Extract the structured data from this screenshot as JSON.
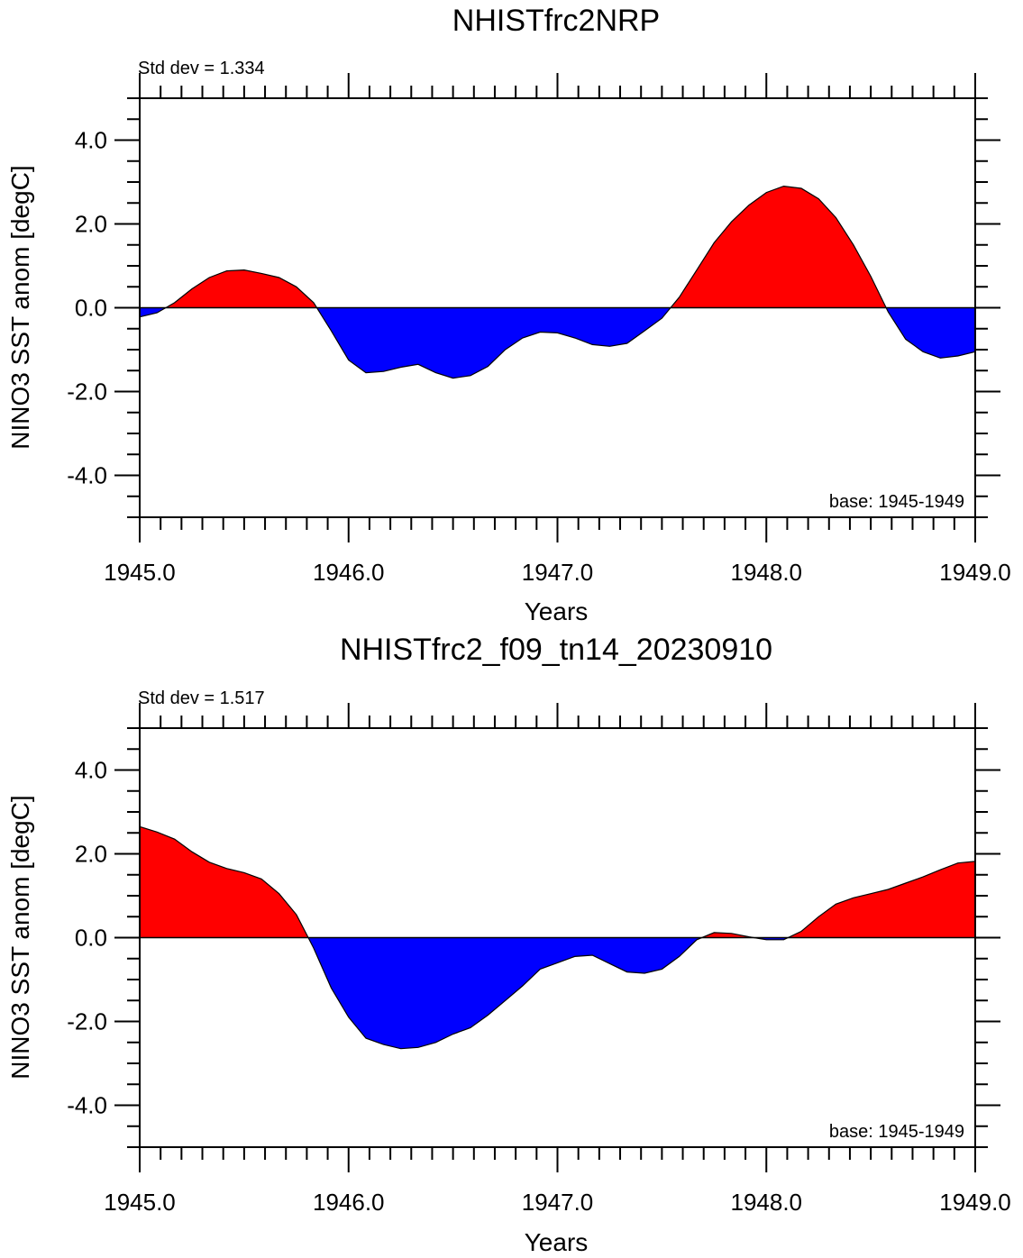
{
  "figure": {
    "colors": {
      "positive": "#ff0000",
      "negative": "#0000ff",
      "axis": "#000000"
    }
  },
  "chart_data": [
    {
      "type": "area",
      "title": "NHISTfrc2NRP",
      "xlabel": "Years",
      "ylabel": "NINO3 SST anom [degC]",
      "stddev_label": "Std dev = 1.334",
      "base_label": "base: 1945-1949",
      "xlim": [
        1945.0,
        1949.0
      ],
      "ylim": [
        -5.0,
        5.0
      ],
      "xticks": [
        1945.0,
        1946.0,
        1947.0,
        1948.0,
        1949.0
      ],
      "xtick_labels": [
        "1945.0",
        "1946.0",
        "1947.0",
        "1948.0",
        "1949.0"
      ],
      "yticks": [
        -4.0,
        -2.0,
        0.0,
        2.0,
        4.0
      ],
      "ytick_labels": [
        "-4.0",
        "-2.0",
        "0.0",
        "2.0",
        "4.0"
      ],
      "fill_above": "red",
      "fill_below": "blue",
      "x": [
        1945.0,
        1945.083,
        1945.167,
        1945.25,
        1945.333,
        1945.417,
        1945.5,
        1945.583,
        1945.667,
        1945.75,
        1945.833,
        1945.917,
        1946.0,
        1946.083,
        1946.167,
        1946.25,
        1946.333,
        1946.417,
        1946.5,
        1946.583,
        1946.667,
        1946.75,
        1946.833,
        1946.917,
        1947.0,
        1947.083,
        1947.167,
        1947.25,
        1947.333,
        1947.417,
        1947.5,
        1947.583,
        1947.667,
        1947.75,
        1947.833,
        1947.917,
        1948.0,
        1948.083,
        1948.167,
        1948.25,
        1948.333,
        1948.417,
        1948.5,
        1948.583,
        1948.667,
        1948.75,
        1948.833,
        1948.917,
        1949.0
      ],
      "y": [
        -0.22,
        -0.12,
        0.12,
        0.45,
        0.72,
        0.88,
        0.9,
        0.82,
        0.72,
        0.5,
        0.12,
        -0.55,
        -1.25,
        -1.55,
        -1.52,
        -1.42,
        -1.35,
        -1.55,
        -1.68,
        -1.62,
        -1.4,
        -1.0,
        -0.72,
        -0.58,
        -0.6,
        -0.72,
        -0.88,
        -0.92,
        -0.85,
        -0.55,
        -0.25,
        0.25,
        0.9,
        1.55,
        2.05,
        2.45,
        2.75,
        2.9,
        2.85,
        2.6,
        2.15,
        1.5,
        0.75,
        -0.1,
        -0.75,
        -1.05,
        -1.2,
        -1.15,
        -1.05
      ]
    },
    {
      "type": "area",
      "title": "NHISTfrc2_f09_tn14_20230910",
      "xlabel": "Years",
      "ylabel": "NINO3 SST anom [degC]",
      "stddev_label": "Std dev = 1.517",
      "base_label": "base: 1945-1949",
      "xlim": [
        1945.0,
        1949.0
      ],
      "ylim": [
        -5.0,
        5.0
      ],
      "xticks": [
        1945.0,
        1946.0,
        1947.0,
        1948.0,
        1949.0
      ],
      "xtick_labels": [
        "1945.0",
        "1946.0",
        "1947.0",
        "1948.0",
        "1949.0"
      ],
      "yticks": [
        -4.0,
        -2.0,
        0.0,
        2.0,
        4.0
      ],
      "ytick_labels": [
        "-4.0",
        "-2.0",
        "0.0",
        "2.0",
        "4.0"
      ],
      "fill_above": "red",
      "fill_below": "blue",
      "x": [
        1945.0,
        1945.083,
        1945.167,
        1945.25,
        1945.333,
        1945.417,
        1945.5,
        1945.583,
        1945.667,
        1945.75,
        1945.833,
        1945.917,
        1946.0,
        1946.083,
        1946.167,
        1946.25,
        1946.333,
        1946.417,
        1946.5,
        1946.583,
        1946.667,
        1946.75,
        1946.833,
        1946.917,
        1947.0,
        1947.083,
        1947.167,
        1947.25,
        1947.333,
        1947.417,
        1947.5,
        1947.583,
        1947.667,
        1947.75,
        1947.833,
        1947.917,
        1948.0,
        1948.083,
        1948.167,
        1948.25,
        1948.333,
        1948.417,
        1948.5,
        1948.583,
        1948.667,
        1948.75,
        1948.833,
        1948.917,
        1949.0
      ],
      "y": [
        2.65,
        2.52,
        2.35,
        2.05,
        1.8,
        1.65,
        1.55,
        1.4,
        1.05,
        0.55,
        -0.25,
        -1.2,
        -1.9,
        -2.4,
        -2.55,
        -2.65,
        -2.62,
        -2.5,
        -2.3,
        -2.15,
        -1.85,
        -1.5,
        -1.15,
        -0.75,
        -0.6,
        -0.45,
        -0.42,
        -0.62,
        -0.82,
        -0.85,
        -0.75,
        -0.45,
        -0.05,
        0.12,
        0.1,
        0.02,
        -0.05,
        -0.05,
        0.15,
        0.5,
        0.8,
        0.95,
        1.05,
        1.15,
        1.3,
        1.45,
        1.62,
        1.78,
        1.82
      ]
    }
  ]
}
